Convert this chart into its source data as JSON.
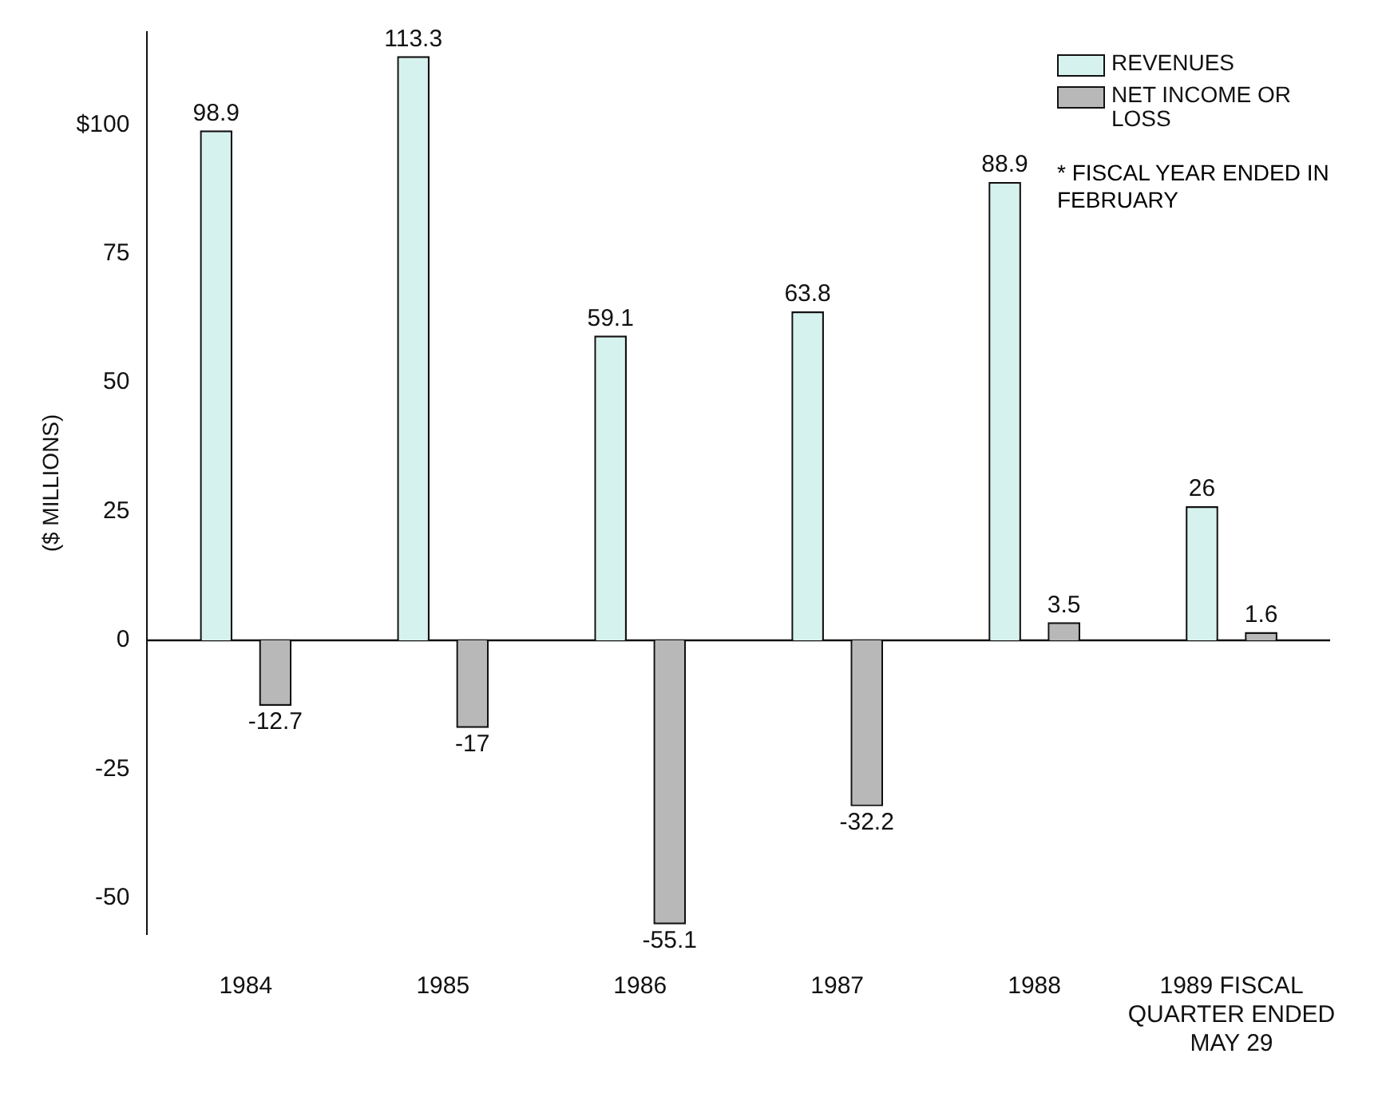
{
  "chart_data": {
    "type": "bar",
    "ylabel": "($ MILLIONS)",
    "categories": [
      "1984",
      "1985",
      "1986",
      "1987",
      "1988",
      "1989 FISCAL QUARTER ENDED MAY 29"
    ],
    "series": [
      {
        "name": "REVENUES",
        "color": "#d6f2ee",
        "values": [
          98.9,
          113.3,
          59.1,
          63.8,
          88.9,
          26
        ]
      },
      {
        "name": "NET INCOME OR LOSS",
        "color": "#b8b8b8",
        "values": [
          -12.7,
          -17,
          -55.1,
          -32.2,
          3.5,
          1.6
        ]
      }
    ],
    "ylim": [
      -57,
      118
    ],
    "yticks": [
      -50,
      -25,
      0,
      25,
      50,
      75,
      {
        "value": 100,
        "label": "$100"
      }
    ],
    "ref_lines": [
      {
        "axis": "y",
        "value": 0,
        "color": "#111111"
      }
    ],
    "data_labels": true,
    "grid": false,
    "legend": "top right",
    "annotations": [
      "* FISCAL YEAR ENDED IN FEBRUARY"
    ]
  }
}
